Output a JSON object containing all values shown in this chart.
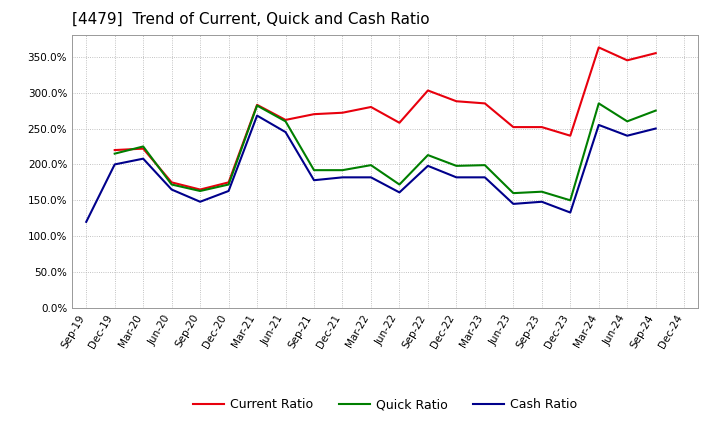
{
  "title": "[4479]  Trend of Current, Quick and Cash Ratio",
  "x_labels": [
    "Sep-19",
    "Dec-19",
    "Mar-20",
    "Jun-20",
    "Sep-20",
    "Dec-20",
    "Mar-21",
    "Jun-21",
    "Sep-21",
    "Dec-21",
    "Mar-22",
    "Jun-22",
    "Sep-22",
    "Dec-22",
    "Mar-23",
    "Jun-23",
    "Sep-23",
    "Dec-23",
    "Mar-24",
    "Jun-24",
    "Sep-24",
    "Dec-24"
  ],
  "current_ratio": [
    null,
    220,
    222,
    175,
    165,
    175,
    283,
    262,
    270,
    272,
    280,
    258,
    303,
    288,
    285,
    252,
    252,
    240,
    363,
    345,
    355,
    null
  ],
  "quick_ratio": [
    null,
    215,
    225,
    172,
    163,
    172,
    282,
    260,
    192,
    192,
    199,
    172,
    213,
    198,
    199,
    160,
    162,
    150,
    285,
    260,
    275,
    null
  ],
  "cash_ratio": [
    120,
    200,
    208,
    165,
    148,
    163,
    268,
    245,
    178,
    182,
    182,
    161,
    198,
    182,
    182,
    145,
    148,
    133,
    255,
    240,
    250,
    null
  ],
  "current_color": "#e8000d",
  "quick_color": "#007f00",
  "cash_color": "#00008b",
  "background_color": "#ffffff",
  "plot_background": "#ffffff",
  "grid_color": "#b0b0b0",
  "ylim": [
    0,
    380
  ],
  "yticks": [
    0,
    50,
    100,
    150,
    200,
    250,
    300,
    350
  ],
  "title_fontsize": 11,
  "legend_fontsize": 9,
  "tick_fontsize": 7.5,
  "line_width": 1.5
}
